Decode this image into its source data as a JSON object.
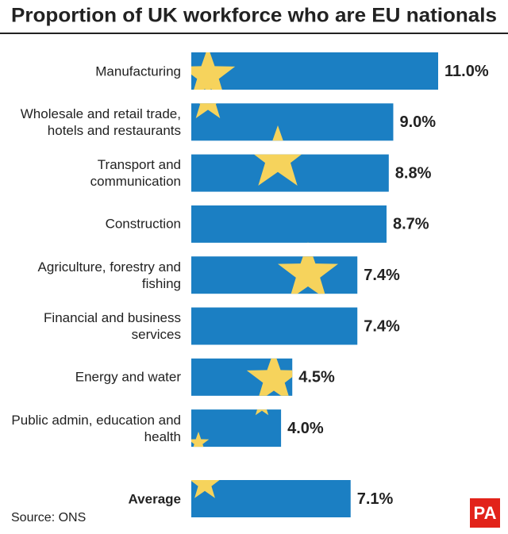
{
  "chart_data": {
    "type": "bar",
    "orientation": "horizontal",
    "title": "Proportion of UK workforce who are EU nationals",
    "categories": [
      "Manufacturing",
      "Wholesale and retail trade, hotels and restaurants",
      "Transport and communication",
      "Construction",
      "Agriculture, forestry and fishing",
      "Financial and business services",
      "Energy and water",
      "Public admin, education and health"
    ],
    "values": [
      11.0,
      9.0,
      8.8,
      8.7,
      7.4,
      7.4,
      4.5,
      4.0
    ],
    "value_labels": [
      "11.0%",
      "9.0%",
      "8.8%",
      "8.7%",
      "7.4%",
      "7.4%",
      "4.5%",
      "4.0%"
    ],
    "average": {
      "label": "Average",
      "value": 7.1,
      "value_label": "7.1%"
    },
    "color": "#1b7fc3",
    "star_color": "#f6d35c",
    "source": "Source: ONS",
    "logo": "PA"
  }
}
